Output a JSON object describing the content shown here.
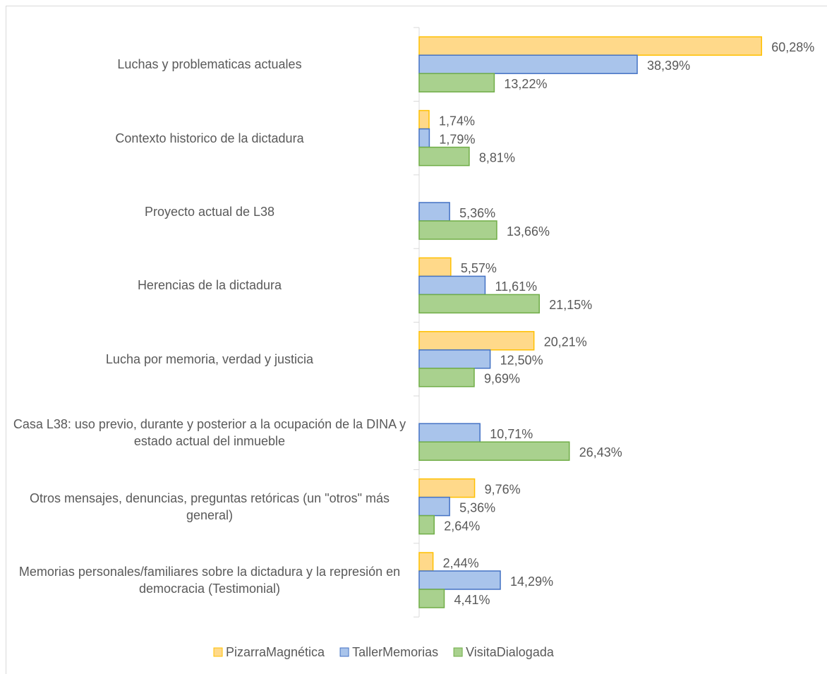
{
  "chart_data": {
    "type": "bar",
    "orientation": "horizontal",
    "categories": [
      "Luchas y problematicas actuales",
      "Contexto historico de la dictadura",
      "Proyecto actual de L38",
      "Herencias de la dictadura",
      "Lucha por memoria, verdad y justicia",
      "Casa L38: uso previo, durante y posterior a la ocupación de la DINA y estado actual del inmueble",
      "Otros mensajes, denuncias, preguntas retóricas (un \"otros\" más general)",
      "Memorias personales/familiares sobre la dictadura y la represión en democracia (Testimonial)"
    ],
    "series": [
      {
        "name": "PizarraMagnética",
        "color": "#ffc000",
        "fill": "#ffd98a",
        "values": [
          60.28,
          1.74,
          null,
          5.57,
          20.21,
          null,
          9.76,
          2.44
        ],
        "value_labels": [
          "60,28%",
          "1,74%",
          null,
          "5,57%",
          "20,21%",
          null,
          "9,76%",
          "2,44%"
        ]
      },
      {
        "name": "TallerMemorias",
        "color": "#4472c4",
        "fill": "#a9c4eb",
        "values": [
          38.39,
          1.79,
          5.36,
          11.61,
          12.5,
          10.71,
          5.36,
          14.29
        ],
        "value_labels": [
          "38,39%",
          "1,79%",
          "5,36%",
          "11,61%",
          "12,50%",
          "10,71%",
          "5,36%",
          "14,29%"
        ]
      },
      {
        "name": "VisitaDialogada",
        "color": "#70ad47",
        "fill": "#a9d18e",
        "values": [
          13.22,
          8.81,
          13.66,
          21.15,
          9.69,
          26.43,
          2.64,
          4.41
        ],
        "value_labels": [
          "13,22%",
          "8,81%",
          "13,66%",
          "21,15%",
          "9,69%",
          "26,43%",
          "2,64%",
          "4,41%"
        ]
      }
    ],
    "legend": "bottom"
  }
}
